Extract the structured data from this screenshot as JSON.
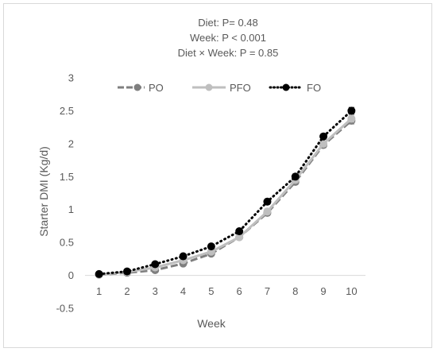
{
  "chart_data": {
    "type": "line",
    "annotations": [
      "Diet: P= 0.48",
      "Week: P < 0.001",
      "Diet × Week: P = 0.85"
    ],
    "xlabel": "Week",
    "ylabel": "Starter DMI (Kg/d)",
    "categories": [
      "1",
      "2",
      "3",
      "4",
      "5",
      "6",
      "7",
      "8",
      "9",
      "10"
    ],
    "ylim": [
      -0.5,
      3
    ],
    "yticks": [
      "-0.5",
      "0",
      "0.5",
      "1",
      "1.5",
      "2",
      "2.5",
      "3"
    ],
    "yticks_values": [
      -0.5,
      0,
      0.5,
      1,
      1.5,
      2,
      2.5,
      3
    ],
    "grid": false,
    "legend_position": "top",
    "series": [
      {
        "name": "PO",
        "style": "dash",
        "color": "#7f7f7f",
        "values": [
          0.01,
          0.04,
          0.08,
          0.18,
          0.33,
          0.58,
          0.95,
          1.42,
          1.98,
          2.35
        ],
        "error": [
          0.03,
          0.02,
          0.03,
          0.03,
          0.03,
          0.03,
          0.04,
          0.04,
          0.04,
          0.05
        ]
      },
      {
        "name": "PFO",
        "style": "solid",
        "color": "#bfbfbf",
        "values": [
          0.01,
          0.05,
          0.12,
          0.23,
          0.36,
          0.58,
          0.97,
          1.45,
          2.0,
          2.38
        ],
        "error": [
          0.03,
          0.02,
          0.03,
          0.03,
          0.03,
          0.03,
          0.04,
          0.04,
          0.04,
          0.05
        ]
      },
      {
        "name": "FO",
        "style": "dot",
        "color": "#000000",
        "values": [
          0.02,
          0.06,
          0.17,
          0.29,
          0.44,
          0.67,
          1.12,
          1.5,
          2.11,
          2.5
        ],
        "error": [
          0.03,
          0.02,
          0.03,
          0.03,
          0.03,
          0.03,
          0.04,
          0.04,
          0.04,
          0.05
        ]
      }
    ]
  }
}
